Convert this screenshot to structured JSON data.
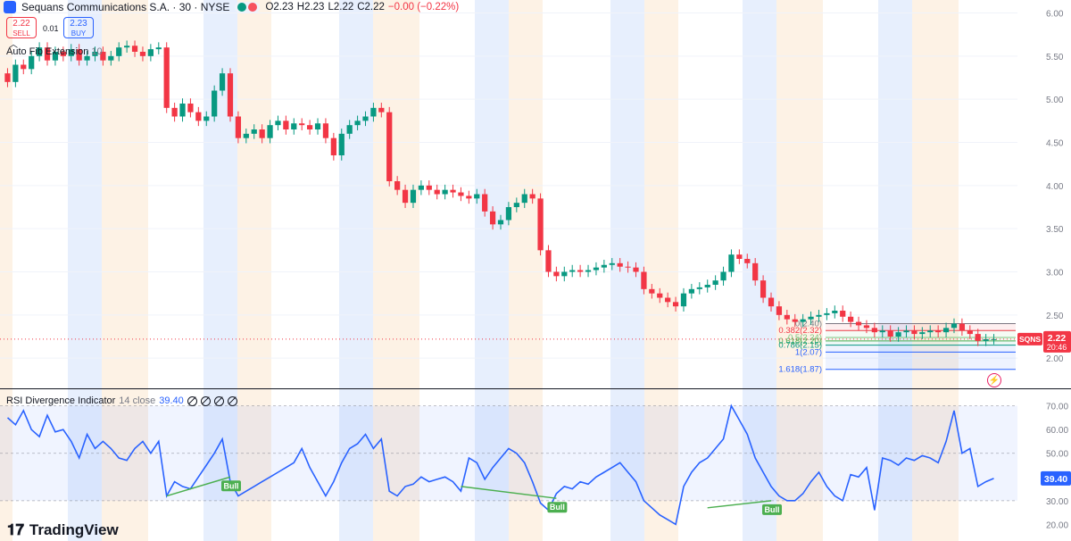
{
  "header": {
    "title": "Sequans Communications S.A. · 30 · NYSE",
    "ohlc": {
      "o": "O2.23",
      "h": "H2.23",
      "l": "L2.22",
      "c": "C2.22",
      "change": "−0.00 (−0.22%)"
    }
  },
  "trade": {
    "sell_price": "2.22",
    "sell_label": "SELL",
    "buy_price": "2.23",
    "buy_label": "BUY",
    "spread": "0.01"
  },
  "indicators": {
    "fib_label": "Auto Fib Extension",
    "fib_param": "10",
    "rsi_label": "RSI Divergence Indicator",
    "rsi_params": "14 close",
    "rsi_value": "39.40"
  },
  "price_axis": {
    "ticks": [
      "6.00",
      "5.50",
      "5.00",
      "4.50",
      "4.00",
      "3.50",
      "3.00",
      "2.50",
      "2.00"
    ],
    "current_price": "2.22",
    "countdown": "20:46",
    "symbol_tag": "SQNS"
  },
  "rsi_axis": {
    "ticks": [
      "70.00",
      "60.00",
      "50.00",
      "40.00",
      "30.00",
      "20.00"
    ],
    "current_value": "39.40"
  },
  "fib_levels": [
    {
      "label": "0(2.40)",
      "value": 2.4,
      "color": "#787b86"
    },
    {
      "label": "0.382(2.32)",
      "value": 2.32,
      "color": "#f23645"
    },
    {
      "label": "0.5(2.24)",
      "value": 2.24,
      "color": "#81c784"
    },
    {
      "label": "0.618(2.20)",
      "value": 2.2,
      "color": "#4caf50"
    },
    {
      "label": "0.786(2.15)",
      "value": 2.15,
      "color": "#089981"
    },
    {
      "label": "1(2.07)",
      "value": 2.07,
      "color": "#2962ff"
    },
    {
      "label": "1.618(1.87)",
      "value": 1.87,
      "color": "#2962ff"
    }
  ],
  "divergence_labels": [
    "Bull",
    "Bull",
    "Bull"
  ],
  "colors": {
    "up": "#089981",
    "down": "#f23645",
    "rsi": "#2962ff",
    "blue_band": "#e3ecfd",
    "orange_band": "#fdf0e1"
  },
  "logo": {
    "text": "TradingView"
  },
  "chart_data": [
    {
      "type": "candlestick",
      "title": "Sequans Communications S.A. · 30 · NYSE",
      "ylim": [
        1.65,
        6.15
      ],
      "close": [
        5.2,
        5.4,
        5.35,
        5.5,
        5.6,
        5.45,
        5.55,
        5.5,
        5.58,
        5.45,
        5.5,
        5.55,
        5.45,
        5.5,
        5.6,
        5.62,
        5.55,
        5.5,
        5.58,
        5.6,
        4.9,
        4.8,
        4.95,
        4.85,
        4.75,
        4.8,
        5.1,
        5.3,
        4.8,
        4.55,
        4.6,
        4.65,
        4.55,
        4.7,
        4.75,
        4.65,
        4.72,
        4.7,
        4.65,
        4.72,
        4.55,
        4.35,
        4.6,
        4.7,
        4.75,
        4.8,
        4.9,
        4.85,
        4.05,
        3.95,
        3.8,
        3.95,
        4.0,
        3.95,
        3.9,
        3.95,
        3.92,
        3.88,
        3.85,
        3.9,
        3.7,
        3.55,
        3.6,
        3.75,
        3.8,
        3.9,
        3.85,
        3.25,
        3.0,
        2.95,
        3.0,
        3.02,
        3.0,
        3.02,
        3.05,
        3.08,
        3.1,
        3.06,
        3.05,
        3.0,
        2.8,
        2.75,
        2.7,
        2.65,
        2.6,
        2.75,
        2.8,
        2.82,
        2.85,
        2.9,
        3.0,
        3.2,
        3.15,
        3.1,
        2.9,
        2.7,
        2.6,
        2.5,
        2.45,
        2.42,
        2.45,
        2.48,
        2.5,
        2.52,
        2.55,
        2.48,
        2.42,
        2.38,
        2.35,
        2.3,
        2.32,
        2.25,
        2.3,
        2.32,
        2.28,
        2.3,
        2.32,
        2.3,
        2.35,
        2.4,
        2.32,
        2.28,
        2.2,
        2.22,
        2.22
      ],
      "rsi": [
        65,
        62,
        68,
        60,
        57,
        66,
        59,
        60,
        55,
        48,
        58,
        52,
        55,
        52,
        48,
        47,
        52,
        55,
        50,
        55,
        32,
        38,
        36,
        35,
        40,
        45,
        50,
        56,
        38,
        32,
        34,
        36,
        38,
        40,
        42,
        44,
        46,
        52,
        44,
        38,
        32,
        38,
        46,
        52,
        54,
        58,
        52,
        56,
        34,
        32,
        36,
        37,
        40,
        38,
        39,
        40,
        38,
        34,
        48,
        46,
        39,
        44,
        48,
        52,
        50,
        46,
        38,
        29,
        26,
        33,
        36,
        35,
        38,
        37,
        40,
        42,
        44,
        46,
        42,
        38,
        30,
        27,
        24,
        22,
        20,
        36,
        42,
        46,
        48,
        52,
        56,
        70,
        64,
        58,
        48,
        42,
        36,
        32,
        30,
        30,
        33,
        38,
        42,
        36,
        32,
        30,
        41,
        40,
        44,
        26,
        48,
        47,
        45,
        48,
        47,
        49,
        48,
        46,
        55,
        68,
        50,
        52,
        36,
        38,
        39.4
      ]
    }
  ]
}
